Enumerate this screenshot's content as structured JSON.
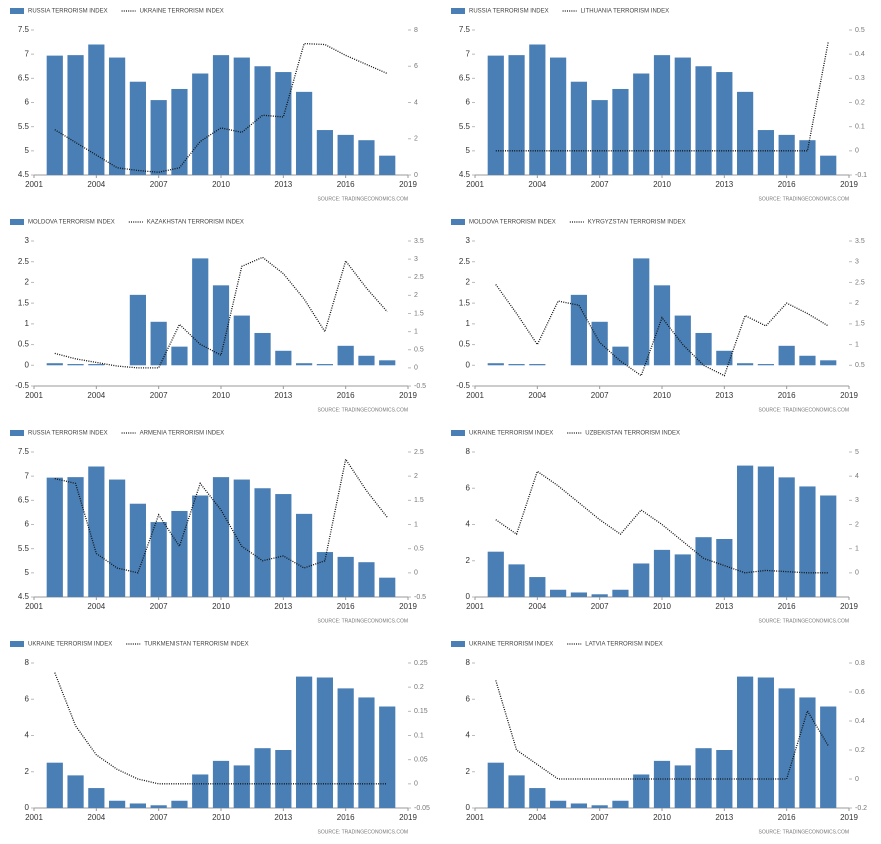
{
  "chart_data": [
    {
      "type": "combo",
      "x": [
        2002,
        2003,
        2004,
        2005,
        2006,
        2007,
        2008,
        2009,
        2010,
        2011,
        2012,
        2013,
        2014,
        2015,
        2016,
        2017,
        2018
      ],
      "series": [
        {
          "name": "RUSSIA TERRORISM INDEX",
          "color": "#4a7fb5",
          "values": [
            6.97,
            6.98,
            7.2,
            6.93,
            6.43,
            6.05,
            6.28,
            6.6,
            6.98,
            6.93,
            6.75,
            6.63,
            6.22,
            5.43,
            5.33,
            5.22,
            4.9
          ]
        },
        {
          "name": "UKRAINE TERRORISM INDEX",
          "color": "#111111",
          "axis": "y2",
          "line_style": "dotted",
          "values": [
            2.5,
            1.8,
            1.1,
            0.4,
            0.25,
            0.15,
            0.4,
            1.85,
            2.6,
            2.35,
            3.3,
            3.2,
            7.25,
            7.2,
            6.6,
            6.1,
            5.6
          ]
        }
      ],
      "xlim": [
        2001,
        2019
      ],
      "xticks": [
        2001,
        2004,
        2007,
        2010,
        2013,
        2016,
        2019
      ],
      "ylim": [
        4.5,
        7.5
      ],
      "yticks": [
        4.5,
        5,
        5.5,
        6,
        6.5,
        7,
        7.5
      ],
      "y2lim": [
        0,
        8
      ],
      "y2ticks": [
        0,
        2,
        4,
        6,
        8
      ],
      "source": "SOURCE: TRADINGECONOMICS.COM"
    },
    {
      "type": "combo",
      "x": [
        2002,
        2003,
        2004,
        2005,
        2006,
        2007,
        2008,
        2009,
        2010,
        2011,
        2012,
        2013,
        2014,
        2015,
        2016,
        2017,
        2018
      ],
      "series": [
        {
          "name": "RUSSIA TERRORISM INDEX",
          "color": "#4a7fb5",
          "values": [
            6.97,
            6.98,
            7.2,
            6.93,
            6.43,
            6.05,
            6.28,
            6.6,
            6.98,
            6.93,
            6.75,
            6.63,
            6.22,
            5.43,
            5.33,
            5.22,
            4.9
          ]
        },
        {
          "name": "LITHUANIA TERRORISM INDEX",
          "color": "#111111",
          "axis": "y2",
          "line_style": "dotted",
          "values": [
            0,
            0,
            0,
            0,
            0,
            0,
            0,
            0,
            0,
            0,
            0,
            0,
            0,
            0,
            0,
            0,
            0.45
          ]
        }
      ],
      "xlim": [
        2001,
        2019
      ],
      "xticks": [
        2001,
        2004,
        2007,
        2010,
        2013,
        2016,
        2019
      ],
      "ylim": [
        4.5,
        7.5
      ],
      "yticks": [
        4.5,
        5,
        5.5,
        6,
        6.5,
        7,
        7.5
      ],
      "y2lim": [
        -0.1,
        0.5
      ],
      "y2ticks": [
        -0.1,
        0,
        0.1,
        0.2,
        0.3,
        0.4,
        0.5
      ],
      "source": "SOURCE: TRADINGECONOMICS.COM"
    },
    {
      "type": "combo",
      "x": [
        2002,
        2003,
        2004,
        2005,
        2006,
        2007,
        2008,
        2009,
        2010,
        2011,
        2012,
        2013,
        2014,
        2015,
        2016,
        2017,
        2018
      ],
      "series": [
        {
          "name": "MOLDOVA TERRORISM INDEX",
          "color": "#4a7fb5",
          "values": [
            0.05,
            0.03,
            0.03,
            0,
            1.7,
            1.05,
            0.45,
            2.58,
            1.93,
            1.2,
            0.78,
            0.35,
            0.05,
            0.03,
            0.47,
            0.23,
            0.12
          ]
        },
        {
          "name": "KAZAKHSTAN TERRORISM INDEX",
          "color": "#111111",
          "axis": "y2",
          "line_style": "dotted",
          "values": [
            0.4,
            0.25,
            0.15,
            0.05,
            0,
            0,
            1.2,
            0.65,
            0.35,
            2.8,
            3.05,
            2.6,
            1.9,
            1.0,
            2.95,
            2.2,
            1.55
          ]
        }
      ],
      "xlim": [
        2001,
        2019
      ],
      "xticks": [
        2001,
        2004,
        2007,
        2010,
        2013,
        2016,
        2019
      ],
      "ylim": [
        -0.5,
        3
      ],
      "yticks": [
        -0.5,
        0,
        0.5,
        1,
        1.5,
        2,
        2.5,
        3
      ],
      "y2lim": [
        -0.5,
        3.5
      ],
      "y2ticks": [
        -0.5,
        0,
        0.5,
        1,
        1.5,
        2,
        2.5,
        3,
        3.5
      ],
      "source": "SOURCE: TRADINGECONOMICS.COM"
    },
    {
      "type": "combo",
      "x": [
        2002,
        2003,
        2004,
        2005,
        2006,
        2007,
        2008,
        2009,
        2010,
        2011,
        2012,
        2013,
        2014,
        2015,
        2016,
        2017,
        2018
      ],
      "series": [
        {
          "name": "MOLDOVA TERRORISM INDEX",
          "color": "#4a7fb5",
          "values": [
            0.05,
            0.03,
            0.03,
            0,
            1.7,
            1.05,
            0.45,
            2.58,
            1.93,
            1.2,
            0.78,
            0.35,
            0.05,
            0.03,
            0.47,
            0.23,
            0.12
          ]
        },
        {
          "name": "KYRGYZSTAN TERRORISM INDEX",
          "color": "#111111",
          "axis": "y2",
          "line_style": "dotted",
          "values": [
            2.45,
            1.75,
            1.0,
            2.05,
            1.95,
            1.05,
            0.6,
            0.25,
            1.65,
            1.0,
            0.5,
            0.25,
            1.7,
            1.45,
            2.0,
            1.75,
            1.45
          ]
        }
      ],
      "xlim": [
        2001,
        2019
      ],
      "xticks": [
        2001,
        2004,
        2007,
        2010,
        2013,
        2016,
        2019
      ],
      "ylim": [
        -0.5,
        3
      ],
      "yticks": [
        -0.5,
        0,
        0.5,
        1,
        1.5,
        2,
        2.5,
        3
      ],
      "y2lim": [
        0,
        3.5
      ],
      "y2ticks": [
        0.5,
        1,
        1.5,
        2,
        2.5,
        3,
        3.5
      ],
      "source": "SOURCE: TRADINGECONOMICS.COM"
    },
    {
      "type": "combo",
      "x": [
        2002,
        2003,
        2004,
        2005,
        2006,
        2007,
        2008,
        2009,
        2010,
        2011,
        2012,
        2013,
        2014,
        2015,
        2016,
        2017,
        2018
      ],
      "series": [
        {
          "name": "RUSSIA TERRORISM INDEX",
          "color": "#4a7fb5",
          "values": [
            6.97,
            6.98,
            7.2,
            6.93,
            6.43,
            6.05,
            6.28,
            6.6,
            6.98,
            6.93,
            6.75,
            6.63,
            6.22,
            5.43,
            5.33,
            5.22,
            4.9
          ]
        },
        {
          "name": "ARMENIA TERRORISM INDEX",
          "color": "#111111",
          "axis": "y2",
          "line_style": "dotted",
          "values": [
            1.95,
            1.85,
            0.4,
            0.1,
            0,
            1.2,
            0.55,
            1.85,
            1.3,
            0.55,
            0.25,
            0.35,
            0.1,
            0.25,
            2.35,
            1.7,
            1.15
          ]
        }
      ],
      "xlim": [
        2001,
        2019
      ],
      "xticks": [
        2001,
        2004,
        2007,
        2010,
        2013,
        2016,
        2019
      ],
      "ylim": [
        4.5,
        7.5
      ],
      "yticks": [
        4.5,
        5,
        5.5,
        6,
        6.5,
        7,
        7.5
      ],
      "y2lim": [
        -0.5,
        2.5
      ],
      "y2ticks": [
        -0.5,
        0,
        0.5,
        1,
        1.5,
        2,
        2.5
      ],
      "source": "SOURCE: TRADINGECONOMICS.COM"
    },
    {
      "type": "combo",
      "x": [
        2002,
        2003,
        2004,
        2005,
        2006,
        2007,
        2008,
        2009,
        2010,
        2011,
        2012,
        2013,
        2014,
        2015,
        2016,
        2017,
        2018
      ],
      "series": [
        {
          "name": "UKRAINE TERRORISM INDEX",
          "color": "#4a7fb5",
          "values": [
            2.5,
            1.8,
            1.1,
            0.4,
            0.25,
            0.15,
            0.4,
            1.85,
            2.6,
            2.35,
            3.3,
            3.2,
            7.25,
            7.2,
            6.6,
            6.1,
            5.6
          ]
        },
        {
          "name": "UZBEKISTAN TERRORISM INDEX",
          "color": "#111111",
          "axis": "y2",
          "line_style": "dotted",
          "values": [
            2.2,
            1.6,
            4.2,
            3.6,
            2.9,
            2.2,
            1.6,
            2.6,
            2.0,
            1.3,
            0.6,
            0.3,
            0,
            0.1,
            0.05,
            0,
            0
          ]
        }
      ],
      "xlim": [
        2001,
        2019
      ],
      "xticks": [
        2001,
        2004,
        2007,
        2010,
        2013,
        2016,
        2019
      ],
      "ylim": [
        0,
        8
      ],
      "yticks": [
        0,
        2,
        4,
        6,
        8
      ],
      "y2lim": [
        -1,
        5
      ],
      "y2ticks": [
        0,
        1,
        2,
        3,
        4,
        5
      ],
      "source": "SOURCE: TRADINGECONOMICS.COM"
    },
    {
      "type": "combo",
      "x": [
        2002,
        2003,
        2004,
        2005,
        2006,
        2007,
        2008,
        2009,
        2010,
        2011,
        2012,
        2013,
        2014,
        2015,
        2016,
        2017,
        2018
      ],
      "series": [
        {
          "name": "UKRAINE TERRORISM INDEX",
          "color": "#4a7fb5",
          "values": [
            2.5,
            1.8,
            1.1,
            0.4,
            0.25,
            0.15,
            0.4,
            1.85,
            2.6,
            2.35,
            3.3,
            3.2,
            7.25,
            7.2,
            6.6,
            6.1,
            5.6
          ]
        },
        {
          "name": "TURKMENISTAN TERRORISM INDEX",
          "color": "#111111",
          "axis": "y2",
          "line_style": "dotted",
          "values": [
            0.23,
            0.12,
            0.06,
            0.03,
            0.01,
            0,
            0,
            0,
            0,
            0,
            0,
            0,
            0,
            0,
            0,
            0,
            0
          ]
        }
      ],
      "xlim": [
        2001,
        2019
      ],
      "xticks": [
        2001,
        2004,
        2007,
        2010,
        2013,
        2016,
        2019
      ],
      "ylim": [
        0,
        8
      ],
      "yticks": [
        0,
        2,
        4,
        6,
        8
      ],
      "y2lim": [
        -0.05,
        0.25
      ],
      "y2ticks": [
        -0.05,
        0,
        0.05,
        0.1,
        0.15,
        0.2,
        0.25
      ],
      "source": "SOURCE: TRADINGECONOMICS.COM"
    },
    {
      "type": "combo",
      "x": [
        2002,
        2003,
        2004,
        2005,
        2006,
        2007,
        2008,
        2009,
        2010,
        2011,
        2012,
        2013,
        2014,
        2015,
        2016,
        2017,
        2018
      ],
      "series": [
        {
          "name": "UKRAINE TERRORISM INDEX",
          "color": "#4a7fb5",
          "values": [
            2.5,
            1.8,
            1.1,
            0.4,
            0.25,
            0.15,
            0.4,
            1.85,
            2.6,
            2.35,
            3.3,
            3.2,
            7.25,
            7.2,
            6.6,
            6.1,
            5.6
          ]
        },
        {
          "name": "LATVIA TERRORISM INDEX",
          "color": "#111111",
          "axis": "y2",
          "line_style": "dotted",
          "values": [
            0.68,
            0.2,
            0.1,
            0,
            0,
            0,
            0,
            0,
            0,
            0,
            0,
            0,
            0,
            0,
            0,
            0.47,
            0.23
          ]
        }
      ],
      "xlim": [
        2001,
        2019
      ],
      "xticks": [
        2001,
        2004,
        2007,
        2010,
        2013,
        2016,
        2019
      ],
      "ylim": [
        0,
        8
      ],
      "yticks": [
        0,
        2,
        4,
        6,
        8
      ],
      "y2lim": [
        -0.2,
        0.8
      ],
      "y2ticks": [
        -0.2,
        0,
        0.2,
        0.4,
        0.6,
        0.8
      ],
      "source": "SOURCE: TRADINGECONOMICS.COM"
    }
  ]
}
